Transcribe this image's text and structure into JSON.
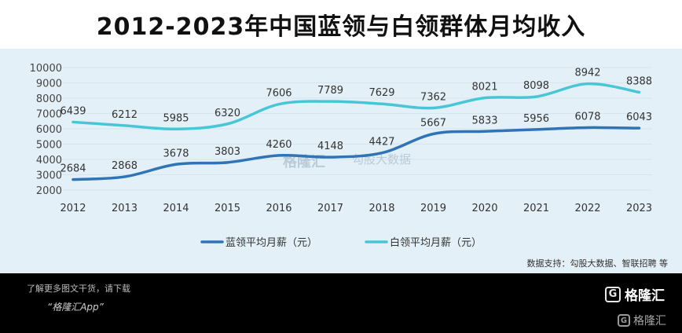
{
  "title": "2012-2023年中国蓝领与白领群体月均收入",
  "source": "数据支持：勾股大数据、智联招聘 等",
  "footer": {
    "download_text": "了解更多图文干货，请下载",
    "app_text": "“格隆汇App”",
    "logo_text": "格隆汇",
    "logo_letter": "G"
  },
  "watermarks": [
    "格隆汇",
    "勾股大数据"
  ],
  "colors": {
    "blue_collar": "#2f74b5",
    "white_collar": "#48c6d6",
    "panel_bg": "#e4f0f7",
    "footer_bg": "#000000"
  },
  "chart_data": {
    "type": "line",
    "categories": [
      "2012",
      "2013",
      "2014",
      "2015",
      "2016",
      "2017",
      "2018",
      "2019",
      "2020",
      "2021",
      "2022",
      "2023"
    ],
    "series": [
      {
        "name": "蓝领平均月薪（元）",
        "values": [
          2684,
          2868,
          3678,
          3803,
          4260,
          4148,
          4427,
          5667,
          5833,
          5956,
          6078,
          6043
        ]
      },
      {
        "name": "白领平均月薪（元）",
        "values": [
          6439,
          6212,
          5985,
          6320,
          7606,
          7789,
          7629,
          7362,
          8021,
          8098,
          8942,
          8388
        ]
      }
    ],
    "yticks": [
      2000,
      3000,
      4000,
      5000,
      6000,
      7000,
      8000,
      9000,
      10000
    ],
    "ylim": [
      2000,
      10000
    ],
    "grid": true,
    "legend_position": "bottom"
  }
}
